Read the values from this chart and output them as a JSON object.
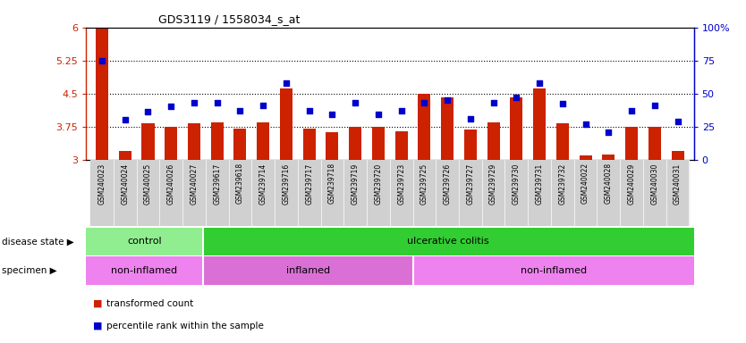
{
  "title": "GDS3119 / 1558034_s_at",
  "samples": [
    "GSM240023",
    "GSM240024",
    "GSM240025",
    "GSM240026",
    "GSM240027",
    "GSM239617",
    "GSM239618",
    "GSM239714",
    "GSM239716",
    "GSM239717",
    "GSM239718",
    "GSM239719",
    "GSM239720",
    "GSM239723",
    "GSM239725",
    "GSM239726",
    "GSM239727",
    "GSM239729",
    "GSM239730",
    "GSM239731",
    "GSM239732",
    "GSM240022",
    "GSM240028",
    "GSM240029",
    "GSM240030",
    "GSM240031"
  ],
  "bar_values": [
    6.0,
    3.2,
    3.82,
    3.75,
    3.82,
    3.85,
    3.7,
    3.85,
    4.62,
    3.7,
    3.62,
    3.74,
    3.74,
    3.64,
    4.5,
    4.42,
    3.68,
    3.84,
    4.42,
    4.62,
    3.82,
    3.1,
    3.12,
    3.74,
    3.74,
    3.2
  ],
  "percentile_values": [
    75,
    30,
    36,
    40,
    43,
    43,
    37,
    41,
    58,
    37,
    34,
    43,
    34,
    37,
    43,
    45,
    31,
    43,
    47,
    58,
    42,
    27,
    21,
    37,
    41,
    29
  ],
  "bar_bottom": 3.0,
  "bar_color": "#cc2200",
  "dot_color": "#0000cc",
  "ylim_left": [
    3.0,
    6.0
  ],
  "ylim_right": [
    0,
    100
  ],
  "yticks_left": [
    3.0,
    3.75,
    4.5,
    5.25,
    6.0
  ],
  "ytick_labels_left": [
    "3",
    "3.75",
    "4.5",
    "5.25",
    "6"
  ],
  "yticks_right": [
    0,
    25,
    50,
    75,
    100
  ],
  "ytick_labels_right": [
    "0",
    "25",
    "50",
    "75",
    "100%"
  ],
  "hlines": [
    3.75,
    4.5,
    5.25
  ],
  "disease_state_bands": [
    {
      "label": "control",
      "start": 0,
      "end": 5,
      "color": "#90ee90"
    },
    {
      "label": "ulcerative colitis",
      "start": 5,
      "end": 26,
      "color": "#32cd32"
    }
  ],
  "specimen_bands": [
    {
      "label": "non-inflamed",
      "start": 0,
      "end": 5,
      "color": "#ee82ee"
    },
    {
      "label": "inflamed",
      "start": 5,
      "end": 14,
      "color": "#da70d6"
    },
    {
      "label": "non-inflamed",
      "start": 14,
      "end": 26,
      "color": "#ee82ee"
    }
  ],
  "legend_items": [
    {
      "label": "transformed count",
      "color": "#cc2200"
    },
    {
      "label": "percentile rank within the sample",
      "color": "#0000cc"
    }
  ],
  "band_label_disease": "disease state",
  "band_label_specimen": "specimen",
  "bg_color": "#ffffff",
  "plot_bg": "#ffffff",
  "xtick_bg_color": "#d0d0d0"
}
